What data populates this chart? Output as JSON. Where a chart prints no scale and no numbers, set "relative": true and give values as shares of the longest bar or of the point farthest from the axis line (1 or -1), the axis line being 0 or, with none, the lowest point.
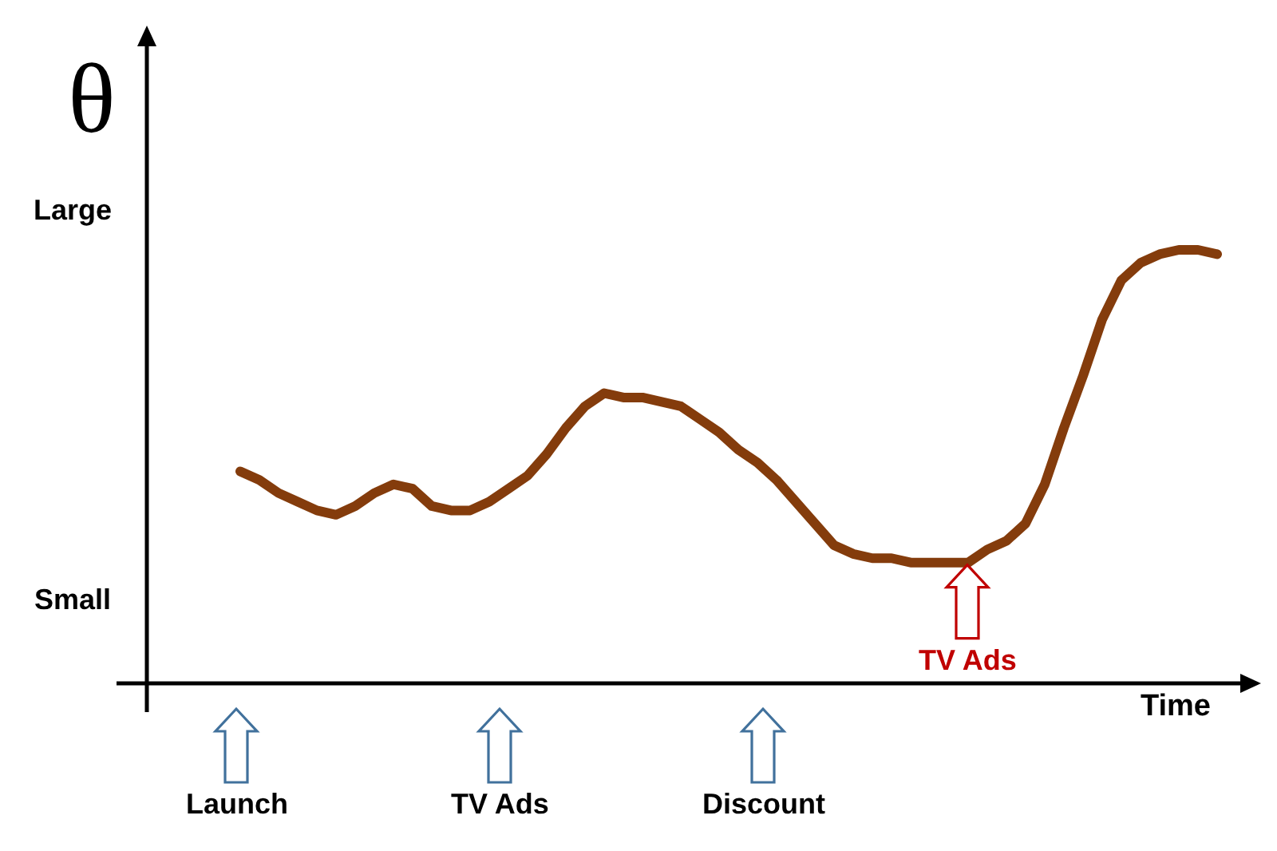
{
  "chart_data": {
    "type": "line",
    "ylabel": "θ",
    "xlabel": "Time",
    "relative": true,
    "line_style": "solid",
    "categories": [
      null,
      null,
      null,
      null,
      null,
      null,
      null,
      null,
      null,
      null,
      null,
      null,
      null,
      null,
      null,
      null,
      null,
      null,
      null,
      null,
      null,
      null,
      null,
      null,
      null,
      null,
      null,
      null,
      null,
      null,
      null,
      null,
      null,
      null,
      null,
      null,
      null,
      null,
      null,
      null,
      null,
      null,
      null,
      null,
      null,
      null,
      null,
      null,
      null,
      null,
      null,
      null
    ],
    "series": [
      {
        "color": "#843c0c",
        "values": [
          0.49,
          0.47,
          0.44,
          0.42,
          0.4,
          0.39,
          0.41,
          0.44,
          0.46,
          0.45,
          0.41,
          0.4,
          0.4,
          0.42,
          0.45,
          0.48,
          0.53,
          0.59,
          0.64,
          0.67,
          0.66,
          0.66,
          0.65,
          0.64,
          0.61,
          0.58,
          0.54,
          0.51,
          0.47,
          0.42,
          0.37,
          0.32,
          0.3,
          0.29,
          0.29,
          0.28,
          0.28,
          0.28,
          0.28,
          0.31,
          0.33,
          0.37,
          0.46,
          0.59,
          0.71,
          0.84,
          0.93,
          0.97,
          0.99,
          1.0,
          1.0,
          0.99
        ]
      }
    ],
    "annotations": [
      "Large",
      "Small",
      "Launch",
      "TV Ads",
      "Discount",
      {
        "text": "TV Ads",
        "y": 0.28
      }
    ]
  }
}
